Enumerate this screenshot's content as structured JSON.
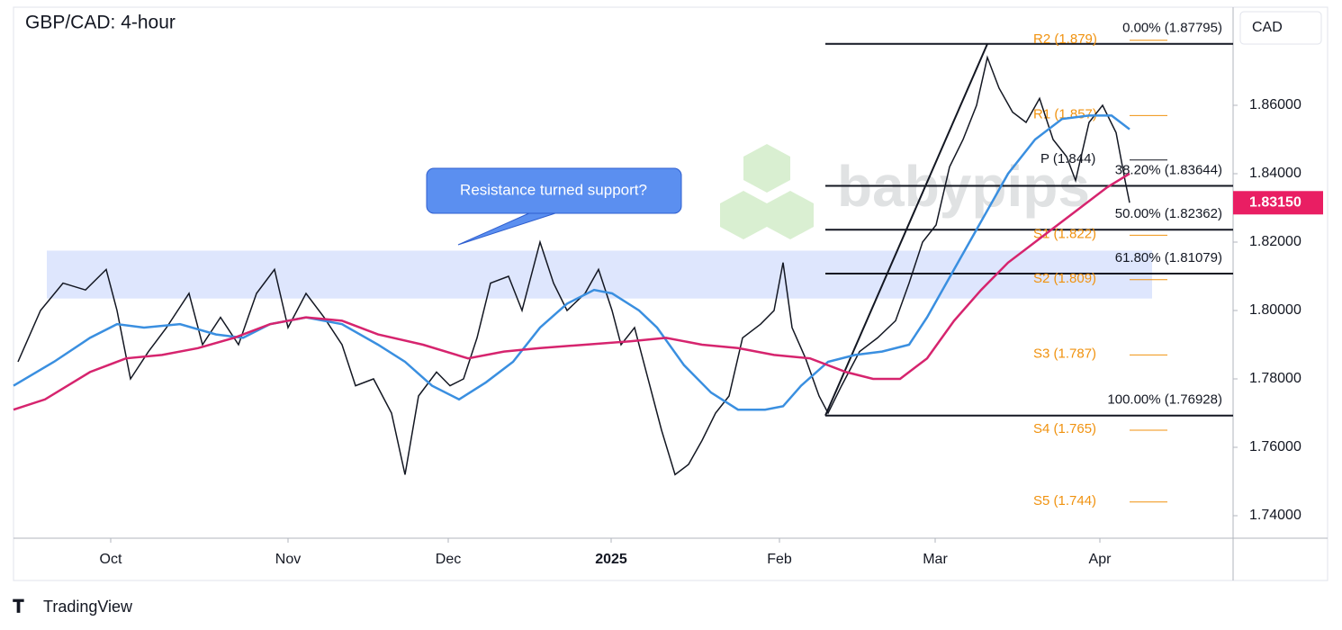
{
  "chart_data": {
    "type": "line",
    "title": "GBP/CAD: 4-hour",
    "currency": "CAD",
    "brand": "TradingView",
    "watermark": "babypips",
    "annotation": "Resistance turned support?",
    "zone": [
      1.8035,
      1.8175
    ],
    "xlim": [
      0,
      1355
    ],
    "xticks": [
      {
        "value": 108,
        "label": "Oct"
      },
      {
        "value": 305,
        "label": "Nov"
      },
      {
        "value": 483,
        "label": "Dec"
      },
      {
        "value": 664,
        "label": "2025"
      },
      {
        "value": 851,
        "label": "Feb"
      },
      {
        "value": 1024,
        "label": "Mar"
      },
      {
        "value": 1207,
        "label": "Apr"
      }
    ],
    "ylim": [
      1.73342,
      1.88868
    ],
    "yticks": [
      {
        "value": 1.74,
        "label": "1.74000"
      },
      {
        "value": 1.76,
        "label": "1.76000"
      },
      {
        "value": 1.78,
        "label": "1.78000"
      },
      {
        "value": 1.8,
        "label": "1.80000"
      },
      {
        "value": 1.82,
        "label": "1.82000"
      },
      {
        "value": 1.84,
        "label": "1.84000"
      },
      {
        "value": 1.86,
        "label": "1.86000"
      }
    ],
    "last_price": {
      "value": 1.8315,
      "label": "1.83150"
    },
    "series": [
      {
        "color": "#131722",
        "x": [
          5,
          30,
          55,
          80,
          103,
          115,
          130,
          150,
          170,
          195,
          210,
          230,
          250,
          270,
          290,
          305,
          325,
          345,
          365,
          380,
          400,
          420,
          435,
          450,
          470,
          485,
          500,
          515,
          530,
          550,
          565,
          585,
          600,
          615,
          635,
          650,
          665,
          675,
          690,
          705,
          720,
          735,
          750,
          765,
          780,
          795,
          810,
          830,
          845,
          855,
          865,
          880,
          895,
          905,
          920,
          940,
          960,
          980,
          995,
          1010,
          1025,
          1040,
          1055,
          1070,
          1082,
          1095,
          1110,
          1125,
          1140,
          1155,
          1170,
          1180,
          1195,
          1210,
          1225,
          1235,
          1240
        ],
        "values": [
          1.785,
          1.8,
          1.808,
          1.806,
          1.812,
          1.8,
          1.78,
          1.788,
          1.795,
          1.805,
          1.79,
          1.798,
          1.79,
          1.805,
          1.812,
          1.795,
          1.805,
          1.798,
          1.79,
          1.778,
          1.78,
          1.77,
          1.752,
          1.775,
          1.782,
          1.778,
          1.78,
          1.792,
          1.808,
          1.81,
          1.8,
          1.82,
          1.808,
          1.8,
          1.805,
          1.812,
          1.8,
          1.79,
          1.795,
          1.78,
          1.765,
          1.752,
          1.755,
          1.762,
          1.77,
          1.775,
          1.792,
          1.796,
          1.8,
          1.814,
          1.795,
          1.786,
          1.775,
          1.77,
          1.778,
          1.788,
          1.792,
          1.797,
          1.808,
          1.82,
          1.825,
          1.842,
          1.85,
          1.86,
          1.874,
          1.865,
          1.858,
          1.855,
          1.862,
          1.85,
          1.845,
          1.838,
          1.855,
          1.86,
          1.852,
          1.838,
          1.8315
        ]
      },
      {
        "color": "#3a8fe0",
        "x": [
          0,
          45,
          85,
          115,
          145,
          185,
          225,
          255,
          285,
          325,
          365,
          405,
          435,
          465,
          495,
          525,
          555,
          585,
          615,
          645,
          665,
          695,
          715,
          745,
          775,
          805,
          835,
          855,
          875,
          905,
          935,
          965,
          995,
          1015,
          1045,
          1075,
          1105,
          1135,
          1165,
          1195,
          1220,
          1240
        ],
        "values": [
          1.778,
          1.785,
          1.792,
          1.796,
          1.795,
          1.796,
          1.793,
          1.792,
          1.796,
          1.798,
          1.796,
          1.79,
          1.785,
          1.778,
          1.774,
          1.779,
          1.785,
          1.795,
          1.802,
          1.806,
          1.805,
          1.8,
          1.795,
          1.784,
          1.776,
          1.771,
          1.771,
          1.772,
          1.778,
          1.785,
          1.787,
          1.788,
          1.79,
          1.798,
          1.812,
          1.826,
          1.84,
          1.85,
          1.856,
          1.857,
          1.857,
          1.853
        ]
      },
      {
        "color": "#d6246e",
        "x": [
          0,
          35,
          85,
          125,
          165,
          205,
          245,
          285,
          325,
          365,
          405,
          455,
          505,
          545,
          585,
          635,
          685,
          725,
          765,
          805,
          845,
          885,
          925,
          955,
          985,
          1015,
          1045,
          1075,
          1105,
          1145,
          1185,
          1215,
          1240
        ],
        "values": [
          1.771,
          1.774,
          1.782,
          1.786,
          1.787,
          1.789,
          1.792,
          1.796,
          1.798,
          1.797,
          1.793,
          1.79,
          1.786,
          1.788,
          1.789,
          1.79,
          1.791,
          1.792,
          1.79,
          1.789,
          1.787,
          1.786,
          1.782,
          1.78,
          1.78,
          1.786,
          1.797,
          1.806,
          1.814,
          1.822,
          1.83,
          1.836,
          1.84
        ]
      }
    ],
    "fib_line": {
      "x": [
        902,
        1082
      ],
      "values": [
        1.76928,
        1.87795
      ]
    },
    "fib_levels": [
      {
        "value": 1.87795,
        "label": "0.00% (1.87795)"
      },
      {
        "value": 1.83644,
        "label": "38.20% (1.83644)"
      },
      {
        "value": 1.82362,
        "label": "50.00% (1.82362)"
      },
      {
        "value": 1.81079,
        "label": "61.80% (1.81079)"
      },
      {
        "value": 1.76928,
        "label": "100.00% (1.76928)"
      }
    ],
    "pivots": [
      {
        "value": 1.879,
        "label": "R2 (1.879)"
      },
      {
        "value": 1.857,
        "label": "R1 (1.857)"
      },
      {
        "value": 1.844,
        "label": "P (1.844)"
      },
      {
        "value": 1.822,
        "label": "S1 (1.822)"
      },
      {
        "value": 1.809,
        "label": "S2 (1.809)"
      },
      {
        "value": 1.787,
        "label": "S3 (1.787)"
      },
      {
        "value": 1.765,
        "label": "S4 (1.765)"
      },
      {
        "value": 1.744,
        "label": "S5 (1.744)"
      }
    ],
    "pivot_color": "#f0920f"
  }
}
